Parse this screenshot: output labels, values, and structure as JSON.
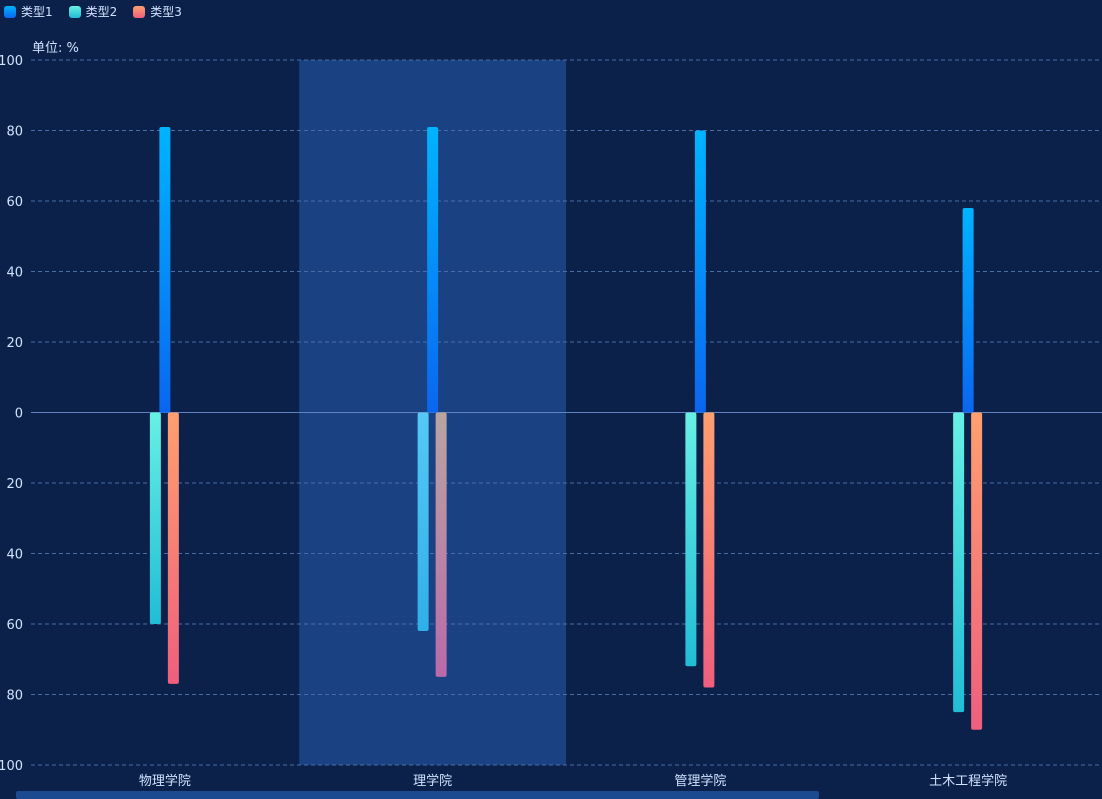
{
  "legend": [
    {
      "label": "类型1",
      "color": "#0a7cf0"
    },
    {
      "label": "类型2",
      "color": "#37d9d6"
    },
    {
      "label": "类型3",
      "color": "#f2746e"
    }
  ],
  "unit_label": "单位: %",
  "chart_data": {
    "type": "bar",
    "categories": [
      "物理学院",
      "理学院",
      "管理学院",
      "土木工程学院"
    ],
    "series": [
      {
        "name": "类型1",
        "values": [
          81,
          81,
          80,
          58
        ]
      },
      {
        "name": "类型2",
        "values": [
          -60,
          -62,
          -72,
          -85
        ]
      },
      {
        "name": "类型3",
        "values": [
          -77,
          -75,
          -78,
          -90
        ]
      }
    ],
    "ylim": [
      -100,
      100
    ],
    "y_ticks": [
      {
        "value": 100,
        "label": "100"
      },
      {
        "value": 80,
        "label": "80"
      },
      {
        "value": 60,
        "label": "60"
      },
      {
        "value": 40,
        "label": "40"
      },
      {
        "value": 20,
        "label": "20"
      },
      {
        "value": 0,
        "label": "0"
      },
      {
        "value": -20,
        "label": "20"
      },
      {
        "value": -40,
        "label": "40"
      },
      {
        "value": -60,
        "label": "60"
      },
      {
        "value": -80,
        "label": "80"
      },
      {
        "value": -100,
        "label": "100"
      }
    ],
    "highlighted_category": "理学院",
    "grid": true,
    "legend_position": "top-left"
  },
  "colors": {
    "background": "#0b214a",
    "highlight": "#1a4283",
    "grid": "#4a6da8",
    "axis_text": "#d2e3ff"
  }
}
